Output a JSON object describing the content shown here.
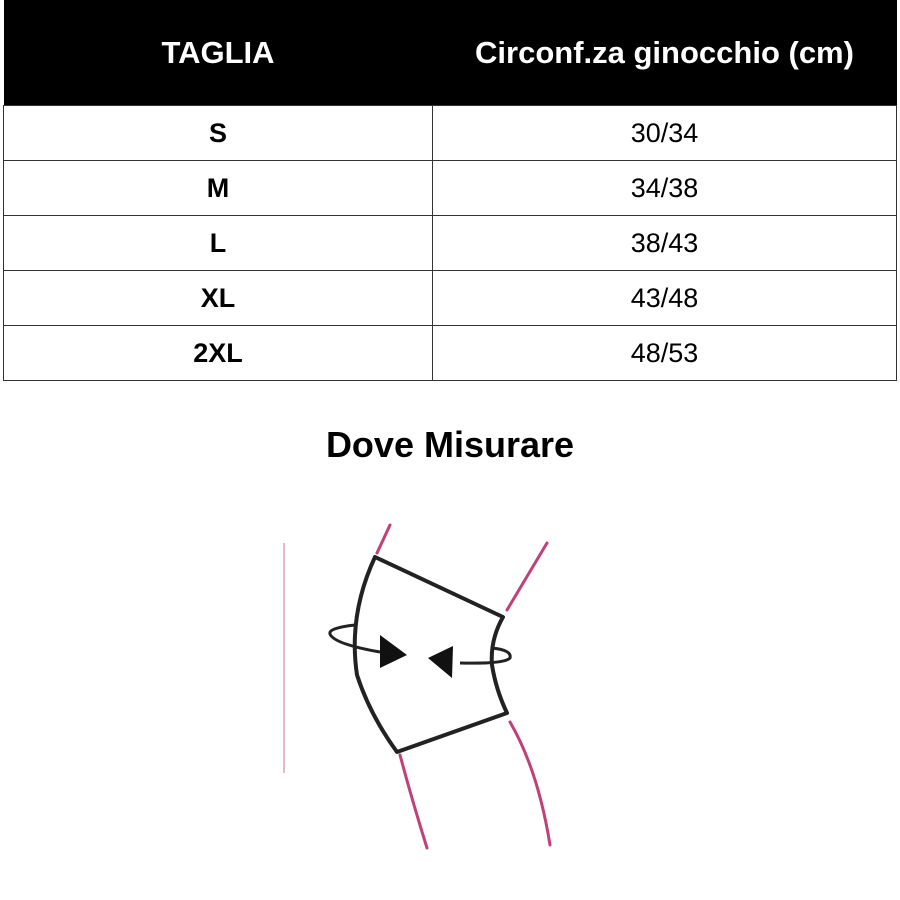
{
  "size_table": {
    "headers": [
      "TAGLIA",
      "Circonf.za ginocchio (cm)"
    ],
    "rows": [
      {
        "size": "S",
        "range": "30/34"
      },
      {
        "size": "M",
        "range": "34/38"
      },
      {
        "size": "L",
        "range": "38/43"
      },
      {
        "size": "XL",
        "range": "43/48"
      },
      {
        "size": "2XL",
        "range": "48/53"
      }
    ]
  },
  "measure_section": {
    "title": "Dove Misurare",
    "illustration": "knee-circumference-diagram",
    "colors": {
      "outline": "#222222",
      "leg": "#c0407a",
      "guide": "#d9a0b8"
    }
  }
}
